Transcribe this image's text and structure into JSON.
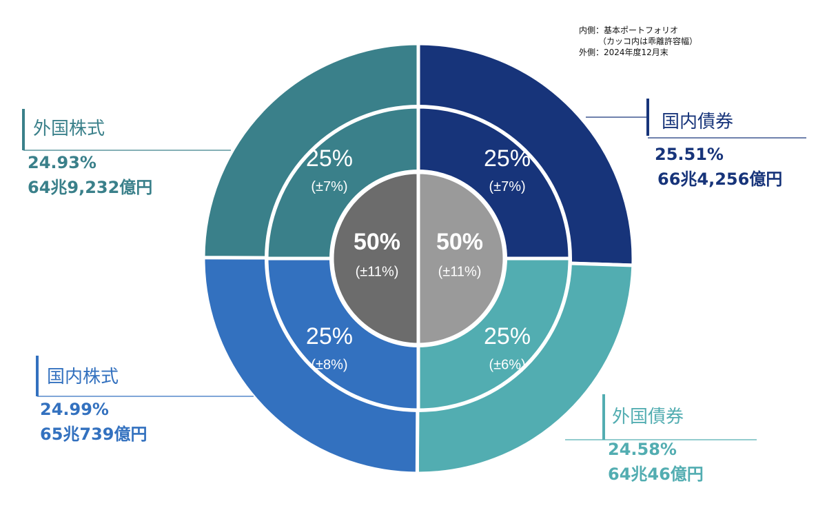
{
  "legend_note": {
    "inner": "内側：基本ポートフォリオ",
    "inner_sub": "（カッコ内は乖離許容幅）",
    "outer": "外側：2024年度12月末"
  },
  "colors": {
    "domestic_bonds": "#17347a",
    "foreign_bonds": "#52adb1",
    "domestic_stocks": "#3371bf",
    "foreign_stocks": "#3a808a",
    "center_left": "#6c6c6c",
    "center_right": "#9a9a9a"
  },
  "chart_data": {
    "type": "pie",
    "outer_ring": [
      {
        "name": "国内債券",
        "percent": 25.51,
        "amount": "66兆4,256億円",
        "percent_label": "25.51%"
      },
      {
        "name": "外国債券",
        "percent": 24.58,
        "amount": "64兆46億円",
        "percent_label": "24.58%"
      },
      {
        "name": "国内株式",
        "percent": 24.99,
        "amount": "65兆739億円",
        "percent_label": "24.99%"
      },
      {
        "name": "外国株式",
        "percent": 24.93,
        "amount": "64兆9,232億円",
        "percent_label": "24.93%"
      }
    ],
    "middle_ring": [
      {
        "name": "国内債券",
        "percent": 25,
        "label": "25%",
        "tolerance": "(±7%)"
      },
      {
        "name": "外国債券",
        "percent": 25,
        "label": "25%",
        "tolerance": "(±6%)"
      },
      {
        "name": "国内株式",
        "percent": 25,
        "label": "25%",
        "tolerance": "(±8%)"
      },
      {
        "name": "外国株式",
        "percent": 25,
        "label": "25%",
        "tolerance": "(±7%)"
      }
    ],
    "center": [
      {
        "side": "right",
        "percent": 50,
        "label": "50%",
        "tolerance": "(±11%)"
      },
      {
        "side": "left",
        "percent": 50,
        "label": "50%",
        "tolerance": "(±11%)"
      }
    ]
  }
}
